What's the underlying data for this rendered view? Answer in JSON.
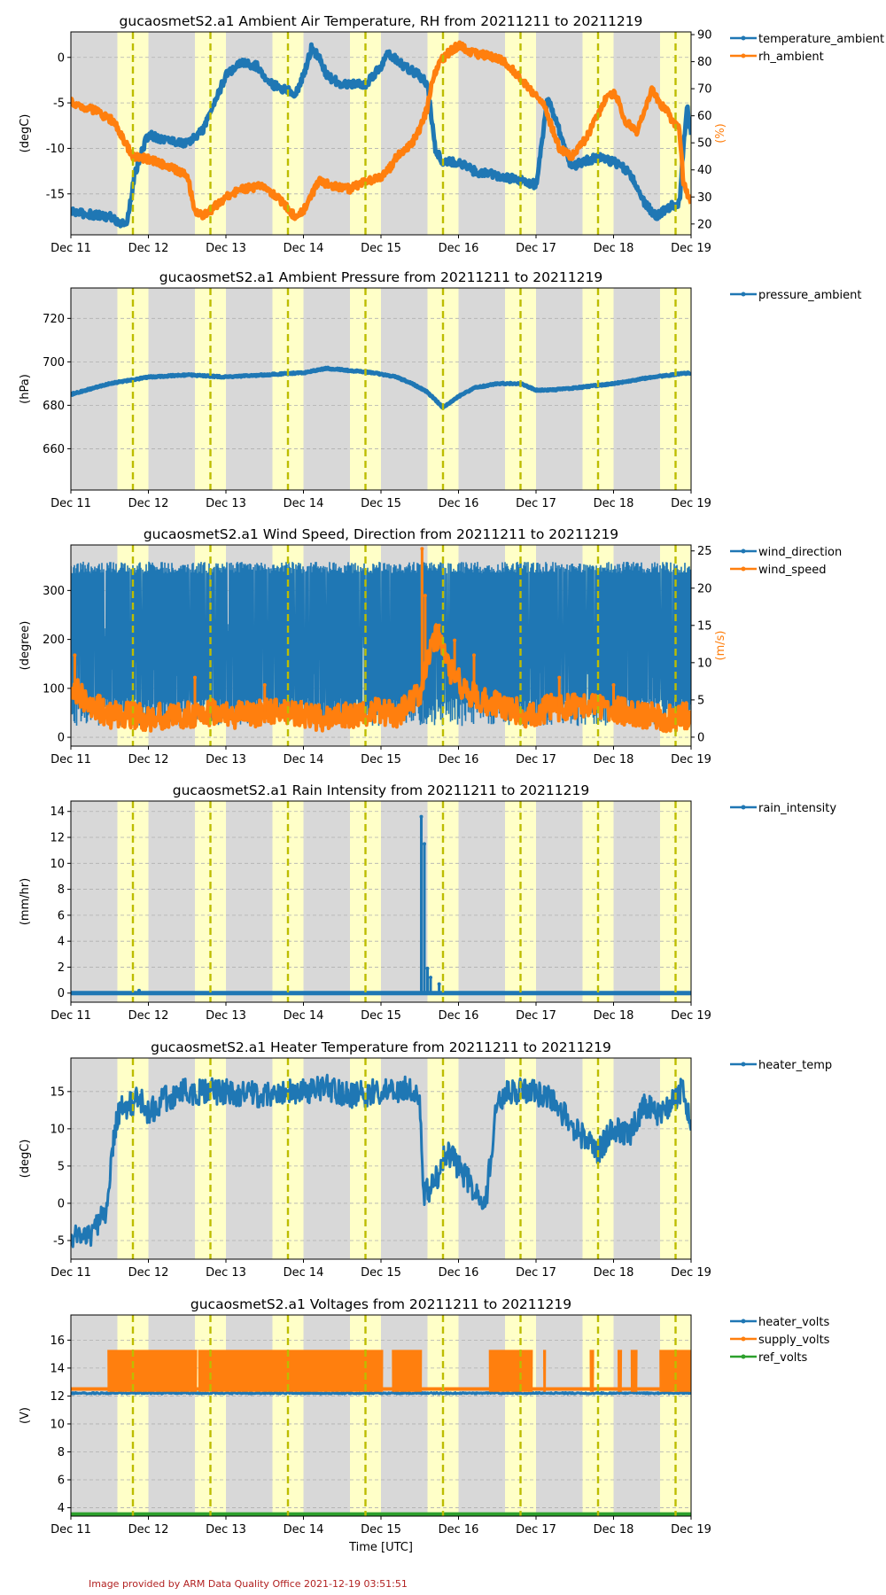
{
  "chart_data": [
    {
      "type": "line",
      "title": "gucaosmetS2.a1 Ambient Air Temperature, RH from 20211211 to 20211219",
      "ylabel": "(degC)",
      "y2label": "(%)",
      "ylim": [
        -19.5,
        2.8
      ],
      "yticks": [
        0,
        -5,
        -10,
        -15
      ],
      "y2lim": [
        16,
        91
      ],
      "y2ticks": [
        20,
        30,
        40,
        50,
        60,
        70,
        80,
        90
      ],
      "xlim": [
        0,
        8
      ],
      "xticklabels": [
        "Dec 11",
        "Dec 12",
        "Dec 13",
        "Dec 14",
        "Dec 15",
        "Dec 16",
        "Dec 17",
        "Dec 18",
        "Dec 19"
      ],
      "series": [
        {
          "name": "temperature_ambient",
          "axis": "left",
          "color": "#1f77b4",
          "noise": 0.45,
          "width": 5,
          "x": [
            0,
            0.5,
            0.6,
            0.7,
            0.75,
            0.82,
            0.95,
            1.0,
            1.2,
            1.5,
            1.7,
            1.85,
            2.0,
            2.2,
            2.4,
            2.6,
            2.75,
            2.9,
            3.0,
            3.1,
            3.2,
            3.3,
            3.5,
            3.8,
            4.0,
            4.1,
            4.3,
            4.5,
            4.6,
            4.7,
            4.8,
            5.0,
            5.2,
            5.5,
            5.8,
            6.0,
            6.15,
            6.3,
            6.45,
            6.6,
            6.8,
            7.0,
            7.2,
            7.4,
            7.55,
            7.7,
            7.85,
            7.9,
            7.95,
            8.0
          ],
          "y": [
            -17,
            -17.5,
            -18,
            -18.5,
            -17,
            -13,
            -9.5,
            -8.5,
            -9,
            -9.5,
            -8,
            -5,
            -2,
            -0.5,
            -1,
            -3,
            -3.5,
            -4,
            -2,
            1,
            0,
            -2,
            -3,
            -3,
            -1,
            0.5,
            -1,
            -2,
            -3,
            -10,
            -11.5,
            -11.5,
            -12.5,
            -13,
            -13.5,
            -14,
            -4.5,
            -8,
            -12,
            -11.5,
            -11,
            -11.5,
            -12.5,
            -16,
            -17.5,
            -16.5,
            -16,
            -10,
            -5.5,
            -8.5
          ]
        },
        {
          "name": "rh_ambient",
          "axis": "right",
          "color": "#ff7f0e",
          "noise": 1.4,
          "width": 5,
          "x": [
            0,
            0.3,
            0.55,
            0.7,
            0.8,
            1.0,
            1.2,
            1.5,
            1.6,
            1.7,
            1.8,
            2.0,
            2.2,
            2.5,
            2.65,
            2.8,
            2.9,
            3.0,
            3.2,
            3.4,
            3.6,
            3.8,
            4.0,
            4.1,
            4.2,
            4.4,
            4.5,
            4.6,
            4.65,
            4.75,
            4.9,
            5.0,
            5.2,
            5.4,
            5.6,
            5.8,
            5.9,
            6.0,
            6.1,
            6.3,
            6.45,
            6.55,
            6.65,
            6.8,
            6.9,
            7.0,
            7.05,
            7.15,
            7.3,
            7.5,
            7.6,
            7.7,
            7.75,
            7.85,
            7.9,
            8.0
          ],
          "y": [
            65,
            62,
            58,
            50,
            45,
            44,
            42,
            38,
            25,
            23,
            25,
            30,
            33,
            34,
            30,
            26,
            22,
            25,
            36,
            34,
            33,
            36,
            37,
            40,
            45,
            50,
            55,
            63,
            72,
            80,
            84,
            86,
            83,
            82,
            80,
            74,
            70,
            68,
            64,
            48,
            45,
            48,
            52,
            60,
            67,
            68,
            66,
            58,
            54,
            70,
            64,
            62,
            58,
            55,
            35,
            28
          ]
        }
      ]
    },
    {
      "type": "line",
      "title": "gucaosmetS2.a1 Ambient Pressure from 20211211 to 20211219",
      "ylabel": "(hPa)",
      "ylim": [
        641,
        734
      ],
      "yticks": [
        660,
        680,
        700,
        720
      ],
      "xlim": [
        0,
        8
      ],
      "xticklabels": [
        "Dec 11",
        "Dec 12",
        "Dec 13",
        "Dec 14",
        "Dec 15",
        "Dec 16",
        "Dec 17",
        "Dec 18",
        "Dec 19"
      ],
      "series": [
        {
          "name": "pressure_ambient",
          "axis": "left",
          "color": "#1f77b4",
          "noise": 0.3,
          "width": 5,
          "x": [
            0,
            0.5,
            1.0,
            1.5,
            2.0,
            2.5,
            3.0,
            3.3,
            3.6,
            3.9,
            4.2,
            4.4,
            4.6,
            4.8,
            5.0,
            5.2,
            5.5,
            5.8,
            6.0,
            6.2,
            6.5,
            7.0,
            7.5,
            8.0
          ],
          "y": [
            685,
            690,
            693,
            694,
            693,
            694,
            695,
            697,
            696,
            695,
            693,
            690,
            686,
            679,
            684,
            688,
            690,
            690,
            687,
            687,
            688,
            690,
            693,
            695
          ]
        }
      ]
    },
    {
      "type": "line",
      "title": "gucaosmetS2.a1 Wind Speed, Direction from 20211211 to 20211219",
      "ylabel": "(degree)",
      "y2label": "(m/s)",
      "ylim": [
        -18,
        393
      ],
      "yticks": [
        0,
        100,
        200,
        300
      ],
      "y2lim": [
        -1.2,
        25.8
      ],
      "y2ticks": [
        0,
        5,
        10,
        15,
        20,
        25
      ],
      "xlim": [
        0,
        8
      ],
      "xticklabels": [
        "Dec 11",
        "Dec 12",
        "Dec 13",
        "Dec 14",
        "Dec 15",
        "Dec 16",
        "Dec 17",
        "Dec 18",
        "Dec 19"
      ],
      "series": [
        {
          "name": "wind_direction",
          "axis": "left",
          "color": "#1f77b4",
          "mode": "band",
          "low": 0,
          "high": 360
        },
        {
          "name": "wind_speed",
          "axis": "right",
          "color": "#ff7f0e",
          "noise": 1.8,
          "width": 4,
          "x": [
            0,
            0.2,
            0.5,
            0.8,
            1.0,
            1.3,
            1.6,
            1.9,
            2.0,
            2.3,
            2.6,
            3.0,
            3.3,
            3.6,
            4.0,
            4.2,
            4.5,
            4.7,
            4.9,
            5.1,
            5.3,
            5.6,
            5.9,
            6.2,
            6.5,
            6.8,
            7.1,
            7.4,
            7.7,
            8.0
          ],
          "y": [
            7,
            5,
            3,
            3,
            2.5,
            3,
            3,
            3.5,
            3,
            3,
            3.5,
            3,
            2.5,
            3,
            3.5,
            3,
            6,
            14,
            9,
            6,
            5,
            4,
            3,
            4,
            4,
            4,
            3.5,
            3,
            2.5,
            3
          ],
          "spikes": [
            [
              4.53,
              25.3
            ],
            [
              4.57,
              19
            ],
            [
              4.75,
              15
            ],
            [
              4.95,
              13
            ],
            [
              5.2,
              11
            ],
            [
              0.05,
              11
            ],
            [
              1.6,
              8
            ],
            [
              2.5,
              7
            ],
            [
              6.3,
              8
            ],
            [
              7.0,
              7
            ]
          ]
        }
      ]
    },
    {
      "type": "line",
      "title": "gucaosmetS2.a1 Rain Intensity from 20211211 to 20211219",
      "ylabel": "(mm/hr)",
      "ylim": [
        -0.7,
        14.8
      ],
      "yticks": [
        0,
        2,
        4,
        6,
        8,
        10,
        12,
        14
      ],
      "xlim": [
        0,
        8
      ],
      "xticklabels": [
        "Dec 11",
        "Dec 12",
        "Dec 13",
        "Dec 14",
        "Dec 15",
        "Dec 16",
        "Dec 17",
        "Dec 18",
        "Dec 19"
      ],
      "series": [
        {
          "name": "rain_intensity",
          "axis": "left",
          "color": "#1f77b4",
          "noise": 0,
          "width": 5,
          "x": [
            0,
            8
          ],
          "y": [
            0,
            0
          ],
          "spikes": [
            [
              4.52,
              13.6
            ],
            [
              4.56,
              11.5
            ],
            [
              4.6,
              1.9
            ],
            [
              4.64,
              1.2
            ],
            [
              4.75,
              0.7
            ],
            [
              0.88,
              0.2
            ]
          ]
        }
      ]
    },
    {
      "type": "line",
      "title": "gucaosmetS2.a1 Heater Temperature from 20211211 to 20211219",
      "ylabel": "(degC)",
      "ylim": [
        -7.5,
        19.5
      ],
      "yticks": [
        -5,
        0,
        5,
        10,
        15
      ],
      "xlim": [
        0,
        8
      ],
      "xticklabels": [
        "Dec 11",
        "Dec 12",
        "Dec 13",
        "Dec 14",
        "Dec 15",
        "Dec 16",
        "Dec 17",
        "Dec 18",
        "Dec 19"
      ],
      "series": [
        {
          "name": "heater_temp",
          "axis": "left",
          "color": "#1f77b4",
          "noise": 1.8,
          "width": 3,
          "x": [
            0,
            0.2,
            0.35,
            0.45,
            0.5,
            0.6,
            0.7,
            0.9,
            1.0,
            1.2,
            1.5,
            2.0,
            2.5,
            3.0,
            3.3,
            3.6,
            4.0,
            4.3,
            4.5,
            4.55,
            4.7,
            4.85,
            5.0,
            5.2,
            5.35,
            5.5,
            5.7,
            6.0,
            6.2,
            6.5,
            6.8,
            7.0,
            7.2,
            7.4,
            7.6,
            7.9,
            8.0
          ],
          "y": [
            -4,
            -4.5,
            -3,
            -1,
            4,
            12,
            13,
            14,
            12,
            14,
            15,
            15,
            14.5,
            15,
            15.5,
            14.5,
            15,
            15.5,
            14,
            1,
            3,
            7,
            5,
            2,
            0,
            14,
            15,
            15,
            14,
            10,
            7,
            10,
            9,
            13,
            12,
            15.5,
            10
          ]
        }
      ]
    },
    {
      "type": "line",
      "title": "gucaosmetS2.a1 Voltages from 20211211 to 20211219",
      "ylabel": "(V)",
      "xlabel": "Time [UTC]",
      "ylim": [
        3.4,
        17.8
      ],
      "yticks": [
        4,
        6,
        8,
        10,
        12,
        14,
        16
      ],
      "xlim": [
        0,
        8
      ],
      "xticklabels": [
        "Dec 11",
        "Dec 12",
        "Dec 13",
        "Dec 14",
        "Dec 15",
        "Dec 16",
        "Dec 17",
        "Dec 18",
        "Dec 19"
      ],
      "series": [
        {
          "name": "heater_volts",
          "axis": "left",
          "color": "#1f77b4",
          "noise": 0.05,
          "width": 3,
          "x": [
            0,
            4,
            8
          ],
          "y": [
            12.2,
            12.2,
            12.2
          ]
        },
        {
          "name": "supply_volts",
          "axis": "left",
          "color": "#ff7f0e",
          "mode": "blocks",
          "low": 12.3,
          "high": 15.3,
          "base": 12.5,
          "blocks": [
            [
              0.48,
              1.62
            ],
            [
              1.65,
              4.02
            ],
            [
              4.15,
              4.52
            ],
            [
              5.4,
              5.95
            ],
            [
              6.1,
              6.12
            ],
            [
              6.7,
              6.74
            ],
            [
              7.06,
              7.1
            ],
            [
              7.23,
              7.3
            ],
            [
              7.6,
              8.0
            ]
          ]
        },
        {
          "name": "ref_volts",
          "axis": "left",
          "color": "#2ca02c",
          "noise": 0,
          "width": 4,
          "x": [
            0,
            8
          ],
          "y": [
            3.55,
            3.55
          ]
        }
      ]
    }
  ],
  "shading": {
    "day_color": "#ffffc8",
    "night_color": "#d8d8d8",
    "day_spans": [
      [
        0.6,
        1.0
      ],
      [
        1.6,
        2.0
      ],
      [
        2.6,
        3.0
      ],
      [
        3.6,
        4.0
      ],
      [
        4.6,
        5.0
      ],
      [
        5.6,
        6.0
      ],
      [
        6.6,
        7.0
      ],
      [
        7.6,
        8.0
      ]
    ],
    "noon_lines": [
      0.8,
      1.8,
      2.8,
      3.8,
      4.8,
      5.8,
      6.8,
      7.8
    ],
    "noon_color": "#bdbd00"
  },
  "footer": "Image provided by ARM Data Quality Office 2021-12-19 03:51:51"
}
